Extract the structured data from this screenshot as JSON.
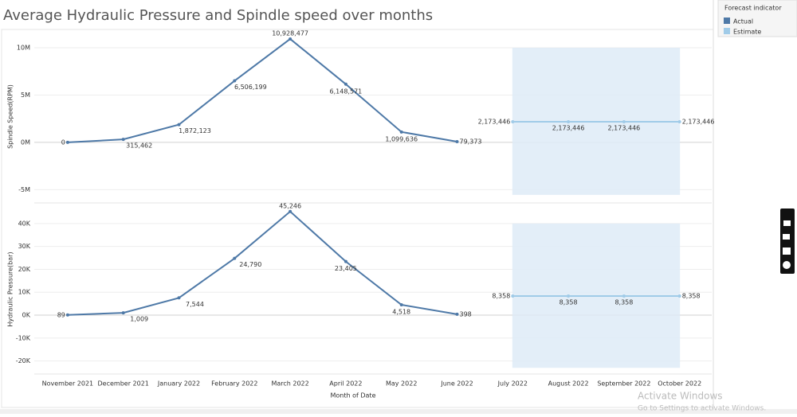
{
  "title": "Average Hydraulic Pressure and Spindle speed over months",
  "legend": {
    "title": "Forecast indicator"
  },
  "x_label": "Month of Date",
  "watermark": {
    "line1": "Activate Windows",
    "line2": "Go to Settings to activate Windows."
  },
  "chart_data": [
    {
      "type": "line",
      "y_label": "Spindle Speed(RPM)",
      "categories": [
        "November 2021",
        "December 2021",
        "January 2022",
        "February 2022",
        "March 2022",
        "April 2022",
        "May 2022",
        "June 2022",
        "July 2022",
        "August 2022",
        "September 2022",
        "October 2022"
      ],
      "ylim": [
        -6400000,
        11850000
      ],
      "yticks": [
        {
          "value": -5000000,
          "label": "-5M"
        },
        {
          "value": 0,
          "label": "0M"
        },
        {
          "value": 5000000,
          "label": "5M"
        },
        {
          "value": 10000000,
          "label": "10M"
        }
      ],
      "grid": true,
      "series": [
        {
          "name": "Actual",
          "color": "#4e79a7",
          "values": [
            0,
            315462,
            1872123,
            6506199,
            10928477,
            6148571,
            1099636,
            79373,
            null,
            null,
            null,
            null
          ],
          "value_labels": [
            "0",
            "315,462",
            "1,872,123",
            "6,506,199",
            "10,928,477",
            "6,148,571",
            "1,099,636",
            "79,373",
            null,
            null,
            null,
            null
          ]
        },
        {
          "name": "Estimate",
          "color": "#a0cbe8",
          "values": [
            null,
            null,
            null,
            null,
            null,
            null,
            null,
            null,
            2173446,
            2173446,
            2173446,
            2173446
          ],
          "value_labels": [
            null,
            null,
            null,
            null,
            null,
            null,
            null,
            null,
            "2,173,446",
            "2,173,446",
            "2,173,446",
            "2,173,446"
          ],
          "interval": [
            -5550000,
            10000000
          ]
        }
      ]
    },
    {
      "type": "line",
      "y_label": "Hydraulic Pressure(bar)",
      "categories": [
        "November 2021",
        "December 2021",
        "January 2022",
        "February 2022",
        "March 2022",
        "April 2022",
        "May 2022",
        "June 2022",
        "July 2022",
        "August 2022",
        "September 2022",
        "October 2022"
      ],
      "ylim": [
        -25700,
        48300
      ],
      "yticks": [
        {
          "value": -20000,
          "label": "-20K"
        },
        {
          "value": -10000,
          "label": "-10K"
        },
        {
          "value": 0,
          "label": "0K"
        },
        {
          "value": 10000,
          "label": "10K"
        },
        {
          "value": 20000,
          "label": "20K"
        },
        {
          "value": 30000,
          "label": "30K"
        },
        {
          "value": 40000,
          "label": "40K"
        }
      ],
      "grid": true,
      "series": [
        {
          "name": "Actual",
          "color": "#4e79a7",
          "values": [
            89,
            1009,
            7544,
            24790,
            45246,
            23405,
            4518,
            398,
            null,
            null,
            null,
            null
          ],
          "value_labels": [
            "89",
            "1,009",
            "7,544",
            "24,790",
            "45,246",
            "23,405",
            "4,518",
            "398",
            null,
            null,
            null,
            null
          ]
        },
        {
          "name": "Estimate",
          "color": "#a0cbe8",
          "values": [
            null,
            null,
            null,
            null,
            null,
            null,
            null,
            null,
            8358,
            8358,
            8358,
            8358
          ],
          "value_labels": [
            null,
            null,
            null,
            null,
            null,
            null,
            null,
            null,
            "8,358",
            "8,358",
            "8,358",
            "8,358"
          ],
          "interval": [
            -23000,
            40000
          ]
        }
      ]
    }
  ]
}
